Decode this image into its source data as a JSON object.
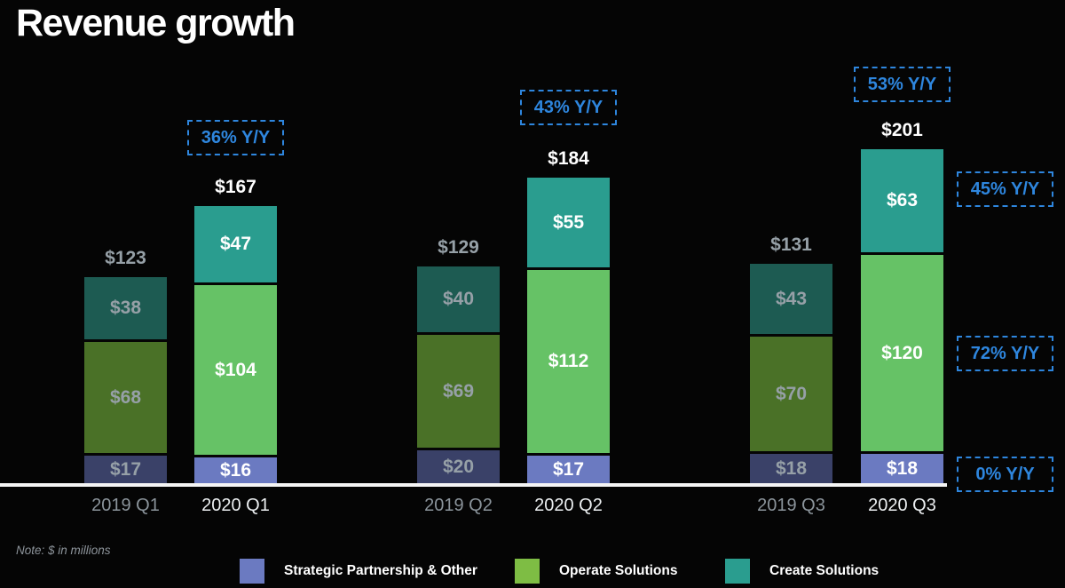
{
  "title": "Revenue growth",
  "note": "Note: $ in millions",
  "colors": {
    "background": "#050505",
    "accent_blue": "#2e86de",
    "axis_line": "#f5f5f5",
    "text_2019": "#96a0a7",
    "text_2020": "#ffffff"
  },
  "legend": [
    {
      "label": "Strategic Partnership & Other",
      "color": "#6b7ac1"
    },
    {
      "label": "Operate Solutions",
      "color": "#7ebd44"
    },
    {
      "label": "Create Solutions",
      "color": "#2a9d8f"
    }
  ],
  "chart_data": {
    "type": "bar",
    "stacked": true,
    "unit": "$ in millions",
    "title": "Revenue growth",
    "categories": [
      "2019 Q1",
      "2020 Q1",
      "2019 Q2",
      "2020 Q2",
      "2019 Q3",
      "2020 Q3"
    ],
    "series": [
      {
        "name": "Strategic Partnership & Other",
        "color_2019": "#3a4168",
        "color_2020": "#6b7ac1",
        "values": [
          17,
          16,
          20,
          17,
          18,
          18
        ]
      },
      {
        "name": "Operate Solutions",
        "color_2019": "#4a7127",
        "color_2020": "#66c266",
        "values": [
          68,
          104,
          69,
          112,
          70,
          120
        ]
      },
      {
        "name": "Create Solutions",
        "color_2019": "#1d5b52",
        "color_2020": "#2a9d8f",
        "values": [
          38,
          47,
          40,
          55,
          43,
          63
        ]
      }
    ],
    "totals": [
      123,
      167,
      129,
      184,
      131,
      201
    ],
    "total_labels": [
      "$123",
      "$167",
      "$129",
      "$184",
      "$131",
      "$201"
    ],
    "yoy_top": [
      "36% Y/Y",
      "43% Y/Y",
      "53% Y/Y"
    ],
    "yoy_right": [
      "45% Y/Y",
      "72% Y/Y",
      "0% Y/Y"
    ],
    "legend_position": "bottom",
    "grid": false,
    "currency_prefix": "$"
  }
}
